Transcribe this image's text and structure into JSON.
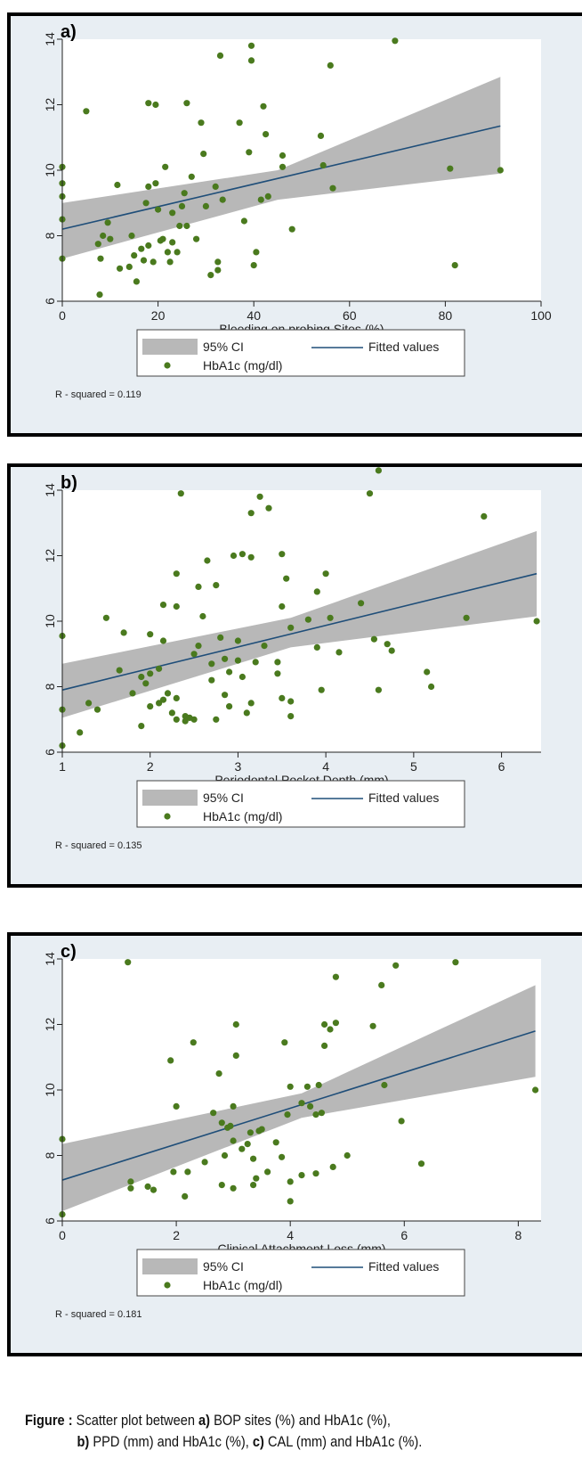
{
  "charts": [
    {
      "tag": "a)",
      "ci_label": "95% CI",
      "fit_label": "Fitted values",
      "scatter_label": "HbA1c (mg/dl)",
      "rsq_text": "R - squared = 0.119"
    },
    {
      "tag": "b)",
      "ci_label": "95% CI",
      "fit_label": "Fitted values",
      "scatter_label": "HbA1c (mg/dl)",
      "rsq_text": "R - squared = 0.135"
    },
    {
      "tag": "c)",
      "ci_label": "95% CI",
      "fit_label": "Fitted values",
      "scatter_label": "HbA1c (mg/dl)",
      "rsq_text": "R - squared = 0.181"
    }
  ],
  "caption": {
    "figure_label": "Figure :",
    "seg1": " Scatter plot between ",
    "a_tag": "a)",
    "seg2": " BOP sites (%) and HbA1c (%),",
    "b_tag": "b)",
    "seg3": " PPD (mm) and HbA1c (%), ",
    "c_tag": "c)",
    "seg4": " CAL (mm) and HbA1c (%)."
  },
  "colors": {
    "point": "#4a7a1e",
    "fit_line": "#1f4e79",
    "ci_band": "#b8b8b8",
    "panel_bg": "#e8eef3",
    "plot_bg": "#ffffff"
  },
  "chart_data": [
    {
      "type": "scatter",
      "title": "",
      "xlabel": "Bleeding on probing Sites (%)",
      "ylabel": "",
      "xlim": [
        0,
        100
      ],
      "ylim": [
        6,
        14
      ],
      "xticks": [
        0,
        20,
        40,
        60,
        80,
        100
      ],
      "yticks": [
        6,
        8,
        10,
        12,
        14
      ],
      "grid": false,
      "legend": "bottom",
      "fit": {
        "x": [
          0,
          91.5
        ],
        "y": [
          8.2,
          11.35
        ]
      },
      "ci_band": {
        "x": [
          0,
          45,
          91.5
        ],
        "lower": [
          7.3,
          9.1,
          9.9
        ],
        "upper": [
          9.0,
          10.0,
          12.85
        ]
      },
      "series": [
        {
          "name": "HbA1c (mg/dl)",
          "points": [
            [
              0,
              10.1
            ],
            [
              0,
              9.6
            ],
            [
              0,
              9.2
            ],
            [
              0,
              8.5
            ],
            [
              0,
              7.3
            ],
            [
              5,
              11.8
            ],
            [
              7.5,
              7.75
            ],
            [
              7.8,
              6.2
            ],
            [
              8,
              7.3
            ],
            [
              8.5,
              8.0
            ],
            [
              9.5,
              8.4
            ],
            [
              10,
              7.9
            ],
            [
              11.5,
              9.55
            ],
            [
              12,
              7.0
            ],
            [
              14,
              7.05
            ],
            [
              14.5,
              8.0
            ],
            [
              15,
              7.4
            ],
            [
              15.5,
              6.6
            ],
            [
              16.5,
              7.6
            ],
            [
              17,
              7.25
            ],
            [
              17.5,
              9.0
            ],
            [
              18,
              12.05
            ],
            [
              18,
              9.5
            ],
            [
              18,
              7.7
            ],
            [
              19,
              7.2
            ],
            [
              19.5,
              12.0
            ],
            [
              19.5,
              9.6
            ],
            [
              20,
              8.8
            ],
            [
              20.5,
              7.85
            ],
            [
              21,
              7.9
            ],
            [
              21.5,
              10.1
            ],
            [
              22,
              7.5
            ],
            [
              22.5,
              7.2
            ],
            [
              23,
              8.7
            ],
            [
              23,
              7.8
            ],
            [
              24,
              7.5
            ],
            [
              24.5,
              8.3
            ],
            [
              25,
              8.9
            ],
            [
              25.5,
              9.3
            ],
            [
              26,
              12.05
            ],
            [
              26,
              8.3
            ],
            [
              27,
              9.8
            ],
            [
              28,
              7.9
            ],
            [
              29,
              11.45
            ],
            [
              29.5,
              10.5
            ],
            [
              30,
              8.9
            ],
            [
              31,
              6.8
            ],
            [
              32,
              9.5
            ],
            [
              32.5,
              7.2
            ],
            [
              32.5,
              6.95
            ],
            [
              33,
              13.5
            ],
            [
              33.5,
              9.1
            ],
            [
              37,
              11.45
            ],
            [
              38,
              8.45
            ],
            [
              39,
              10.55
            ],
            [
              39.5,
              13.8
            ],
            [
              39.5,
              13.35
            ],
            [
              40,
              7.1
            ],
            [
              40.5,
              7.5
            ],
            [
              41.5,
              9.1
            ],
            [
              42,
              11.95
            ],
            [
              42.5,
              11.1
            ],
            [
              43,
              9.2
            ],
            [
              46,
              10.45
            ],
            [
              46,
              10.1
            ],
            [
              48,
              8.2
            ],
            [
              54,
              11.05
            ],
            [
              54.5,
              10.15
            ],
            [
              56,
              13.2
            ],
            [
              56.5,
              9.45
            ],
            [
              69.5,
              13.95
            ],
            [
              81,
              10.05
            ],
            [
              82,
              7.1
            ],
            [
              91.5,
              10.0
            ]
          ]
        }
      ]
    },
    {
      "type": "scatter",
      "title": "",
      "xlabel": "Periodontal Pocket Depth (mm)",
      "ylabel": "",
      "xlim": [
        1,
        6.45
      ],
      "ylim": [
        6,
        14
      ],
      "xticks": [
        1,
        2,
        3,
        4,
        5,
        6
      ],
      "yticks": [
        6,
        8,
        10,
        12,
        14
      ],
      "grid": false,
      "legend": "bottom",
      "fit": {
        "x": [
          1,
          6.4
        ],
        "y": [
          7.9,
          11.45
        ]
      },
      "ci_band": {
        "x": [
          1,
          3.6,
          6.4
        ],
        "lower": [
          7.05,
          9.2,
          10.15
        ],
        "upper": [
          8.7,
          10.1,
          12.75
        ]
      },
      "series": [
        {
          "name": "HbA1c (mg/dl)",
          "points": [
            [
              1,
              9.55
            ],
            [
              1,
              7.3
            ],
            [
              1,
              6.2
            ],
            [
              1.2,
              6.6
            ],
            [
              1.3,
              7.5
            ],
            [
              1.4,
              7.3
            ],
            [
              1.5,
              10.1
            ],
            [
              1.65,
              8.5
            ],
            [
              1.7,
              9.65
            ],
            [
              1.8,
              7.8
            ],
            [
              1.9,
              8.3
            ],
            [
              1.9,
              6.8
            ],
            [
              1.95,
              8.1
            ],
            [
              2,
              9.6
            ],
            [
              2,
              8.4
            ],
            [
              2,
              7.4
            ],
            [
              2.1,
              8.55
            ],
            [
              2.1,
              7.5
            ],
            [
              2.15,
              10.5
            ],
            [
              2.15,
              9.4
            ],
            [
              2.15,
              7.6
            ],
            [
              2.2,
              7.8
            ],
            [
              2.25,
              7.2
            ],
            [
              2.3,
              11.45
            ],
            [
              2.3,
              10.45
            ],
            [
              2.3,
              7.65
            ],
            [
              2.3,
              7.0
            ],
            [
              2.35,
              13.9
            ],
            [
              2.4,
              7.1
            ],
            [
              2.4,
              6.95
            ],
            [
              2.45,
              7.05
            ],
            [
              2.5,
              7.0
            ],
            [
              2.5,
              9.0
            ],
            [
              2.55,
              11.05
            ],
            [
              2.55,
              9.25
            ],
            [
              2.6,
              10.15
            ],
            [
              2.65,
              11.85
            ],
            [
              2.7,
              8.7
            ],
            [
              2.7,
              8.2
            ],
            [
              2.75,
              11.1
            ],
            [
              2.75,
              7.0
            ],
            [
              2.8,
              9.5
            ],
            [
              2.85,
              7.75
            ],
            [
              2.85,
              8.85
            ],
            [
              2.9,
              8.45
            ],
            [
              2.9,
              7.4
            ],
            [
              2.95,
              12.0
            ],
            [
              3,
              8.8
            ],
            [
              3,
              9.4
            ],
            [
              3.05,
              12.05
            ],
            [
              3.05,
              8.3
            ],
            [
              3.1,
              7.2
            ],
            [
              3.15,
              7.5
            ],
            [
              3.15,
              13.3
            ],
            [
              3.15,
              11.95
            ],
            [
              3.2,
              8.75
            ],
            [
              3.3,
              9.25
            ],
            [
              3.25,
              13.8
            ],
            [
              3.35,
              13.45
            ],
            [
              3.45,
              8.4
            ],
            [
              3.45,
              8.75
            ],
            [
              3.5,
              12.05
            ],
            [
              3.5,
              10.45
            ],
            [
              3.5,
              7.65
            ],
            [
              3.55,
              11.3
            ],
            [
              3.6,
              9.8
            ],
            [
              3.6,
              7.1
            ],
            [
              3.6,
              7.55
            ],
            [
              3.8,
              10.05
            ],
            [
              3.9,
              10.9
            ],
            [
              3.9,
              9.2
            ],
            [
              3.95,
              7.9
            ],
            [
              4,
              11.45
            ],
            [
              4.05,
              10.1
            ],
            [
              4.15,
              9.05
            ],
            [
              4.4,
              10.55
            ],
            [
              4.5,
              13.9
            ],
            [
              4.55,
              9.45
            ],
            [
              4.6,
              14.6
            ],
            [
              4.6,
              7.9
            ],
            [
              4.7,
              9.3
            ],
            [
              4.75,
              9.1
            ],
            [
              5.15,
              8.45
            ],
            [
              5.2,
              8.0
            ],
            [
              5.6,
              10.1
            ],
            [
              5.8,
              13.2
            ],
            [
              6.4,
              10.0
            ]
          ]
        }
      ]
    },
    {
      "type": "scatter",
      "title": "",
      "xlabel": "Clinical Attachment Loss (mm)",
      "ylabel": "",
      "xlim": [
        0,
        8.4
      ],
      "ylim": [
        6,
        14
      ],
      "xticks": [
        0,
        2,
        4,
        6,
        8
      ],
      "yticks": [
        6,
        8,
        10,
        12,
        14
      ],
      "grid": false,
      "legend": "bottom",
      "fit": {
        "x": [
          0,
          8.3
        ],
        "y": [
          7.25,
          11.8
        ]
      },
      "ci_band": {
        "x": [
          0,
          4.2,
          8.3
        ],
        "lower": [
          6.3,
          9.15,
          10.4
        ],
        "upper": [
          8.35,
          9.9,
          13.2
        ]
      },
      "series": [
        {
          "name": "HbA1c (mg/dl)",
          "points": [
            [
              0,
              8.5
            ],
            [
              0,
              6.2
            ],
            [
              1.15,
              13.9
            ],
            [
              1.2,
              7.2
            ],
            [
              1.2,
              7.0
            ],
            [
              1.5,
              7.05
            ],
            [
              1.6,
              6.95
            ],
            [
              1.9,
              10.9
            ],
            [
              1.95,
              7.5
            ],
            [
              2,
              9.5
            ],
            [
              2.15,
              6.75
            ],
            [
              2.2,
              7.5
            ],
            [
              2.3,
              11.45
            ],
            [
              2.5,
              7.8
            ],
            [
              2.65,
              9.3
            ],
            [
              2.75,
              10.5
            ],
            [
              2.8,
              9.0
            ],
            [
              2.8,
              7.1
            ],
            [
              2.85,
              8.0
            ],
            [
              2.9,
              8.85
            ],
            [
              2.95,
              8.9
            ],
            [
              3,
              9.5
            ],
            [
              3,
              8.45
            ],
            [
              3,
              7.0
            ],
            [
              3.05,
              12.0
            ],
            [
              3.05,
              11.05
            ],
            [
              3.15,
              8.2
            ],
            [
              3.25,
              8.35
            ],
            [
              3.3,
              8.7
            ],
            [
              3.35,
              7.1
            ],
            [
              3.35,
              7.9
            ],
            [
              3.4,
              7.3
            ],
            [
              3.45,
              8.75
            ],
            [
              3.5,
              8.8
            ],
            [
              3.6,
              7.5
            ],
            [
              3.75,
              8.4
            ],
            [
              3.85,
              7.95
            ],
            [
              3.9,
              11.45
            ],
            [
              3.95,
              9.25
            ],
            [
              4,
              10.1
            ],
            [
              4,
              7.2
            ],
            [
              4,
              6.6
            ],
            [
              4.2,
              7.4
            ],
            [
              4.2,
              9.6
            ],
            [
              4.3,
              10.1
            ],
            [
              4.35,
              9.5
            ],
            [
              4.45,
              7.45
            ],
            [
              4.45,
              9.25
            ],
            [
              4.5,
              10.15
            ],
            [
              4.55,
              9.3
            ],
            [
              4.6,
              12.0
            ],
            [
              4.6,
              11.35
            ],
            [
              4.7,
              11.85
            ],
            [
              4.75,
              7.65
            ],
            [
              4.8,
              13.45
            ],
            [
              4.8,
              12.05
            ],
            [
              5,
              8.0
            ],
            [
              5.45,
              11.95
            ],
            [
              5.6,
              13.2
            ],
            [
              5.65,
              10.15
            ],
            [
              5.85,
              13.8
            ],
            [
              5.95,
              9.05
            ],
            [
              6.3,
              7.75
            ],
            [
              6.9,
              13.9
            ],
            [
              8.3,
              10.0
            ]
          ]
        }
      ]
    }
  ]
}
